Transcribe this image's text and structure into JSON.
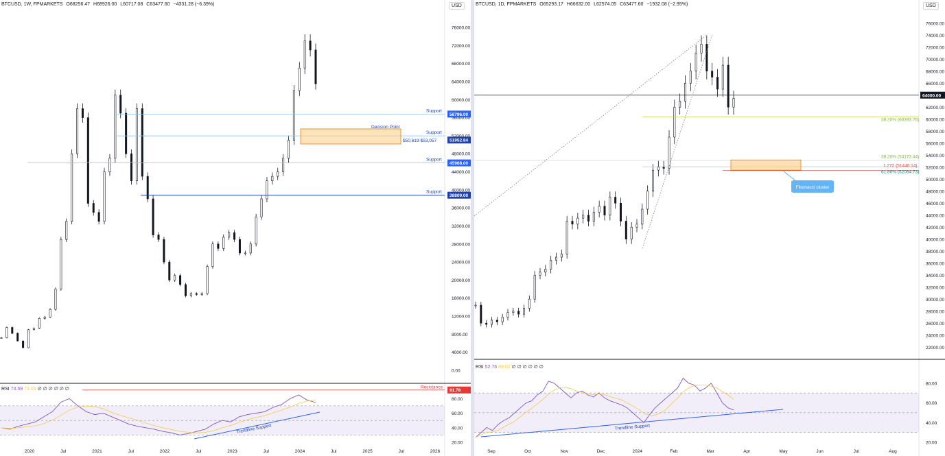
{
  "left": {
    "header": {
      "symbol": "BTCUSD, 1W, FPMARKETS",
      "open": "O68256.47",
      "high": "H68926.00",
      "low": "L60717.08",
      "close": "C63477.60",
      "change": "−4331.28 (−6.39%)"
    },
    "currency": "USD",
    "rsi_header": {
      "label": "RSI",
      "value": "74.59",
      "ma": "73.03",
      "extras": "∅ ∅ ∅ ∅ ∅ ∅"
    },
    "annotations": {
      "decision_point": "Decision Point",
      "zone": "$50,619-$53,057",
      "support1": "Support",
      "support2": "Support",
      "support3": "Support",
      "support4": "Support",
      "resistance": "Resistance",
      "trendline": "Trendline Support"
    },
    "price_tags": {
      "s1": "56796.00",
      "s2": "51952.84",
      "s3": "45968.00",
      "s4": "38809.00",
      "rsi_res": "91.78"
    }
  },
  "right": {
    "header": {
      "symbol": "BTCUSD, 1D, FPMARKETS",
      "open": "O65293.17",
      "high": "H66632.00",
      "low": "L62574.05",
      "close": "C63477.60",
      "change": "−1932.08 (−2.95%)"
    },
    "currency": "USD",
    "rsi_header": {
      "label": "RSI",
      "value": "52.76",
      "ma": "69.02",
      "extras": "∅ ∅ ∅ ∅ ∅ ∅"
    },
    "annotations": {
      "fib1": "38.20% (60393.76)",
      "fib2": "38.20% (53172.44)",
      "fib3": "1.272 (51440.14)",
      "fib4": "61.80% (52064.73)",
      "cluster": "Fibonacci cluster",
      "trendline": "Trendline Support"
    },
    "price_tags": {
      "level": "64000.00"
    }
  },
  "chart_data": [
    {
      "type": "line",
      "title": "BTCUSD, 1W, FPMARKETS",
      "xlabel": "",
      "ylabel": "USD",
      "x_ticks": [
        "2020",
        "Jul",
        "2021",
        "Jul",
        "2022",
        "Jul",
        "2023",
        "Jul",
        "2024",
        "Jul",
        "2025",
        "Jul",
        "2026"
      ],
      "y_ticks": [
        "0.00",
        "4000.00",
        "8000.00",
        "12000.00",
        "16000.00",
        "20000.00",
        "24000.00",
        "28000.00",
        "32000.00",
        "36000.00",
        "40000.00",
        "44000.00",
        "48000.00",
        "52000.00",
        "56000.00",
        "60000.00",
        "64000.00",
        "68000.00",
        "72000.00",
        "76000.00"
      ],
      "ylim": [
        0,
        76000
      ],
      "series": [
        {
          "values": [
            7200,
            9500,
            8200,
            6500,
            5000,
            9000,
            9300,
            11500,
            11800,
            13500,
            18000,
            29000,
            33000,
            48000,
            58000,
            56000,
            37000,
            35000,
            33000,
            44000,
            47000,
            61000,
            57000,
            48000,
            42000,
            58000,
            43000,
            38000,
            30000,
            29000,
            24000,
            20000,
            21000,
            19000,
            16500,
            17000,
            16800,
            17000,
            23000,
            28000,
            27000,
            29500,
            30500,
            29000,
            26000,
            26000,
            28000,
            34000,
            38000,
            42000,
            43000,
            44000,
            47000,
            51000,
            62000,
            67000,
            73000,
            71000,
            63500
          ]
        }
      ],
      "horizontal_levels": [
        56796,
        51952.84,
        45968,
        38809
      ],
      "zone": [
        50619,
        53057
      ],
      "grid": true,
      "legend": "none"
    },
    {
      "type": "line",
      "title": "RSI",
      "ylim": [
        20,
        100
      ],
      "y_ticks": [
        "20.00",
        "40.00",
        "60.00",
        "80.00"
      ],
      "series": [
        {
          "name": "RSI",
          "values": [
            40,
            38,
            42,
            45,
            48,
            55,
            62,
            75,
            80,
            70,
            62,
            58,
            60,
            55,
            50,
            45,
            42,
            40,
            38,
            35,
            33,
            30,
            32,
            35,
            38,
            45,
            50,
            48,
            55,
            58,
            60,
            62,
            68,
            72,
            80,
            85,
            78,
            74.59
          ]
        }
      ],
      "horizontal_levels": [
        70,
        50,
        30,
        91.78
      ]
    },
    {
      "type": "line",
      "title": "BTCUSD, 1D, FPMARKETS",
      "xlabel": "",
      "ylabel": "USD",
      "x_ticks": [
        "Sep",
        "Oct",
        "Nov",
        "Dec",
        "2024",
        "Feb",
        "Mar",
        "Apr",
        "May",
        "Jun",
        "Jul",
        "Aug"
      ],
      "y_ticks": [
        "22000.00",
        "24000.00",
        "26000.00",
        "28000.00",
        "30000.00",
        "32000.00",
        "34000.00",
        "36000.00",
        "38000.00",
        "40000.00",
        "42000.00",
        "44000.00",
        "46000.00",
        "48000.00",
        "50000.00",
        "52000.00",
        "54000.00",
        "56000.00",
        "58000.00",
        "60000.00",
        "62000.00",
        "64000.00",
        "66000.00",
        "68000.00",
        "70000.00",
        "72000.00",
        "74000.00",
        "76000.00"
      ],
      "ylim": [
        21000,
        77000
      ],
      "series": [
        {
          "values": [
            29000,
            26000,
            25800,
            26500,
            26200,
            27000,
            27800,
            28000,
            27500,
            28500,
            30000,
            34000,
            34500,
            35000,
            36500,
            37000,
            37500,
            43000,
            42500,
            43500,
            44000,
            43000,
            44500,
            45500,
            44000,
            47000,
            46000,
            43000,
            40000,
            42000,
            42500,
            45000,
            48000,
            51500,
            52000,
            51800,
            57000,
            62000,
            63000,
            66000,
            68000,
            71000,
            72500,
            68000,
            67000,
            65000,
            69000,
            62000,
            63477.6
          ]
        }
      ],
      "horizontal_levels": [
        64000,
        60393.76,
        53172.44,
        51440.14,
        52064.73
      ],
      "zone": [
        51500,
        53200
      ],
      "grid": true,
      "legend": "none"
    },
    {
      "type": "line",
      "title": "RSI",
      "ylim": [
        20,
        100
      ],
      "y_ticks": [
        "20.00",
        "40.00",
        "60.00",
        "80.00"
      ],
      "series": [
        {
          "name": "RSI",
          "values": [
            25,
            30,
            35,
            32,
            38,
            42,
            45,
            50,
            55,
            60,
            62,
            68,
            72,
            82,
            80,
            75,
            70,
            65,
            70,
            72,
            68,
            66,
            70,
            65,
            62,
            60,
            58,
            55,
            50,
            45,
            40,
            48,
            55,
            60,
            65,
            70,
            75,
            85,
            80,
            78,
            72,
            75,
            80,
            70,
            60,
            55,
            52.76
          ]
        }
      ],
      "horizontal_levels": [
        70,
        50,
        30
      ]
    }
  ]
}
